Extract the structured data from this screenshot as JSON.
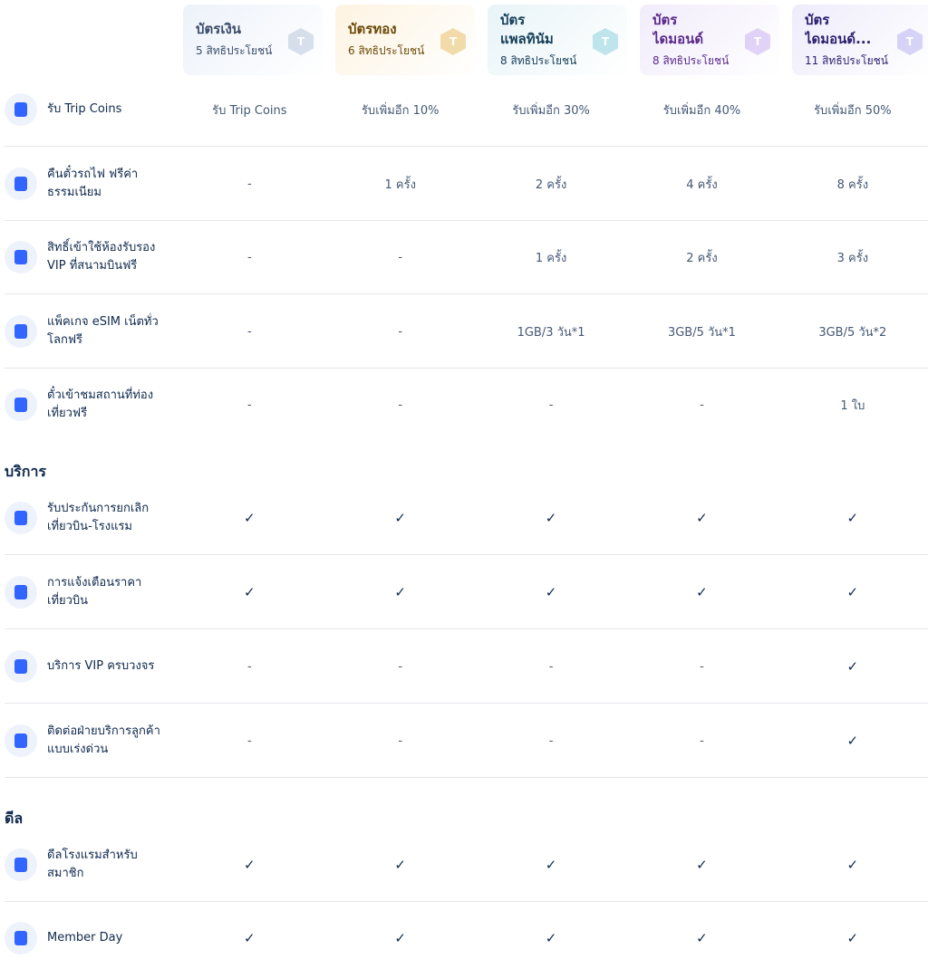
{
  "tiers": [
    {
      "name": "บัตรเงิน",
      "benefits": "5 สิทธิประโยชน์",
      "title_color": "#3c4d69",
      "bg": "#edf2fa",
      "badge": "#b9c6da"
    },
    {
      "name": "บัตรทอง",
      "benefits": "6 สิทธิประโยชน์",
      "title_color": "#6b4a07",
      "bg": "#fdf3e1",
      "badge": "#e8bf6a"
    },
    {
      "name": "บัตร\nแพลทินัม",
      "benefits": "8 สิทธิประโยชน์",
      "title_color": "#17405a",
      "bg": "#e8f4f8",
      "badge": "#8fd0de"
    },
    {
      "name": "บัตร\nไดมอนด์",
      "benefits": "8 สิทธิประโยชน์",
      "title_color": "#5a2a8a",
      "bg": "#f1ecfb",
      "badge": "#cbb3f0"
    },
    {
      "name": "บัตร\nไดมอนด์...",
      "benefits": "11 สิทธิประโยชน์",
      "title_color": "#2b1f6e",
      "bg": "#eeecfb",
      "badge": "#b9b3f0"
    }
  ],
  "check_symbol": "✓",
  "groups": [
    {
      "title": "",
      "rows": [
        {
          "icon": "trip-coins-icon",
          "label": "รับ Trip Coins",
          "values": [
            "รับ Trip Coins",
            "รับเพิ่มอีก 10%",
            "รับเพิ่มอีก 30%",
            "รับเพิ่มอีก 40%",
            "รับเพิ่มอีก 50%"
          ]
        },
        {
          "icon": "train-ticket-icon",
          "label": "คืนตั๋วรถไฟ ฟรีค่าธรรมเนียม",
          "values": [
            "-",
            "1 ครั้ง",
            "2 ครั้ง",
            "4 ครั้ง",
            "8 ครั้ง"
          ]
        },
        {
          "icon": "lounge-sofa-icon",
          "label": "สิทธิ์เข้าใช้ห้องรับรอง VIP ที่สนามบินฟรี",
          "values": [
            "-",
            "-",
            "1 ครั้ง",
            "2 ครั้ง",
            "3 ครั้ง"
          ]
        },
        {
          "icon": "esim-icon",
          "label": "แพ็คเกจ eSIM เน็ตทั่วโลกฟรี",
          "values": [
            "-",
            "-",
            "1GB/3 วัน*1",
            "3GB/5 วัน*1",
            "3GB/5 วัน*2"
          ]
        },
        {
          "icon": "attraction-ticket-icon",
          "label": "ตั๋วเข้าชมสถานที่ท่องเที่ยวฟรี",
          "values": [
            "-",
            "-",
            "-",
            "-",
            "1 ใบ"
          ]
        }
      ]
    },
    {
      "title": "บริการ",
      "rows": [
        {
          "icon": "cancellation-insurance-icon",
          "label": "รับประกันการยกเลิกเที่ยวบิน-โรงแรม",
          "values": [
            "check",
            "check",
            "check",
            "check",
            "check"
          ]
        },
        {
          "icon": "price-alert-bell-icon",
          "label": "การแจ้งเตือนราคาเที่ยวบิน",
          "values": [
            "check",
            "check",
            "check",
            "check",
            "check"
          ]
        },
        {
          "icon": "vip-service-icon",
          "label": "บริการ VIP ครบวงจร",
          "values": [
            "-",
            "-",
            "-",
            "-",
            "check"
          ]
        },
        {
          "icon": "customer-support-headset-icon",
          "label": "ติดต่อฝ่ายบริการลูกค้าแบบเร่งด่วน",
          "values": [
            "-",
            "-",
            "-",
            "-",
            "check"
          ]
        }
      ]
    },
    {
      "title": "ดีล",
      "rows": [
        {
          "icon": "hotel-deal-icon",
          "label": "ดีลโรงแรมสำหรับสมาชิก",
          "values": [
            "check",
            "check",
            "check",
            "check",
            "check"
          ]
        },
        {
          "icon": "member-day-icon",
          "label": "Member Day",
          "values": [
            "check",
            "check",
            "check",
            "check",
            "check"
          ]
        }
      ]
    }
  ]
}
